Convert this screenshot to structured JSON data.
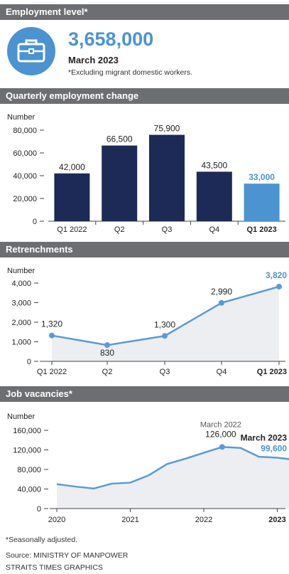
{
  "sections": {
    "employment": "Employment level*",
    "quarterly": "Quarterly employment change",
    "retrenchments": "Retrenchments",
    "vacancies": "Job vacancies*"
  },
  "kpi": {
    "value": "3,658,000",
    "date": "March 2023",
    "note": "*Excluding migrant domestic workers.",
    "icon": "briefcase-icon",
    "color": "#4b93d1"
  },
  "colors": {
    "navy": "#1c2a55",
    "accent": "#4b93d1",
    "line": "#5b9bd5",
    "area": "#eceef1"
  },
  "chart_data": [
    {
      "type": "bar",
      "ylabel": "Number",
      "ylim": [
        0,
        80000
      ],
      "yticks": [
        "80,000",
        "60,000",
        "40,000",
        "20,000",
        "0"
      ],
      "yticks_values": [
        80000,
        60000,
        40000,
        20000,
        0
      ],
      "categories": [
        "Q1 2022",
        "Q2",
        "Q3",
        "Q4",
        "Q1 2023"
      ],
      "values": [
        42000,
        66500,
        75900,
        43500,
        33000
      ],
      "labels": [
        "42,000",
        "66,500",
        "75,900",
        "43,500",
        "33,000"
      ],
      "highlight_index": 4
    },
    {
      "type": "line",
      "ylabel": "Number",
      "ylim": [
        0,
        4000
      ],
      "yticks": [
        "4,000",
        "3,000",
        "2,000",
        "1,000",
        "0"
      ],
      "yticks_values": [
        4000,
        3000,
        2000,
        1000,
        0
      ],
      "categories": [
        "Q1 2022",
        "Q2",
        "Q3",
        "Q4",
        "Q1 2023"
      ],
      "values": [
        1320,
        830,
        1300,
        2990,
        3820
      ],
      "labels": [
        "1,320",
        "830",
        "1,300",
        "2,990",
        "3,820"
      ],
      "highlight_index": 4
    },
    {
      "type": "area",
      "ylabel": "Number",
      "ylim": [
        0,
        160000
      ],
      "yticks": [
        "160,000",
        "120,000",
        "80,000",
        "40,000",
        "0"
      ],
      "yticks_values": [
        160000,
        120000,
        80000,
        40000,
        0
      ],
      "xticks": [
        "2020",
        "2021",
        "2022",
        "2023"
      ],
      "xticks_values": [
        2020,
        2021,
        2022,
        2023
      ],
      "x": [
        2020.0,
        2020.25,
        2020.5,
        2020.75,
        2021.0,
        2021.25,
        2021.5,
        2021.75,
        2022.0,
        2022.25,
        2022.5,
        2022.75,
        2023.0,
        2023.25
      ],
      "values": [
        50000,
        45000,
        41000,
        51000,
        53000,
        68000,
        91000,
        102000,
        114000,
        126000,
        124000,
        106000,
        104000,
        99600
      ],
      "annotations": [
        {
          "label": "March 2022",
          "value": "126,000",
          "index": 9
        },
        {
          "label": "March 2023",
          "value": "99,600",
          "index": 13
        }
      ]
    }
  ],
  "footer": {
    "note": "*Seasonally adjusted.",
    "source": "Source: MINISTRY OF MANPOWER",
    "credit": "STRAITS TIMES GRAPHICS"
  }
}
